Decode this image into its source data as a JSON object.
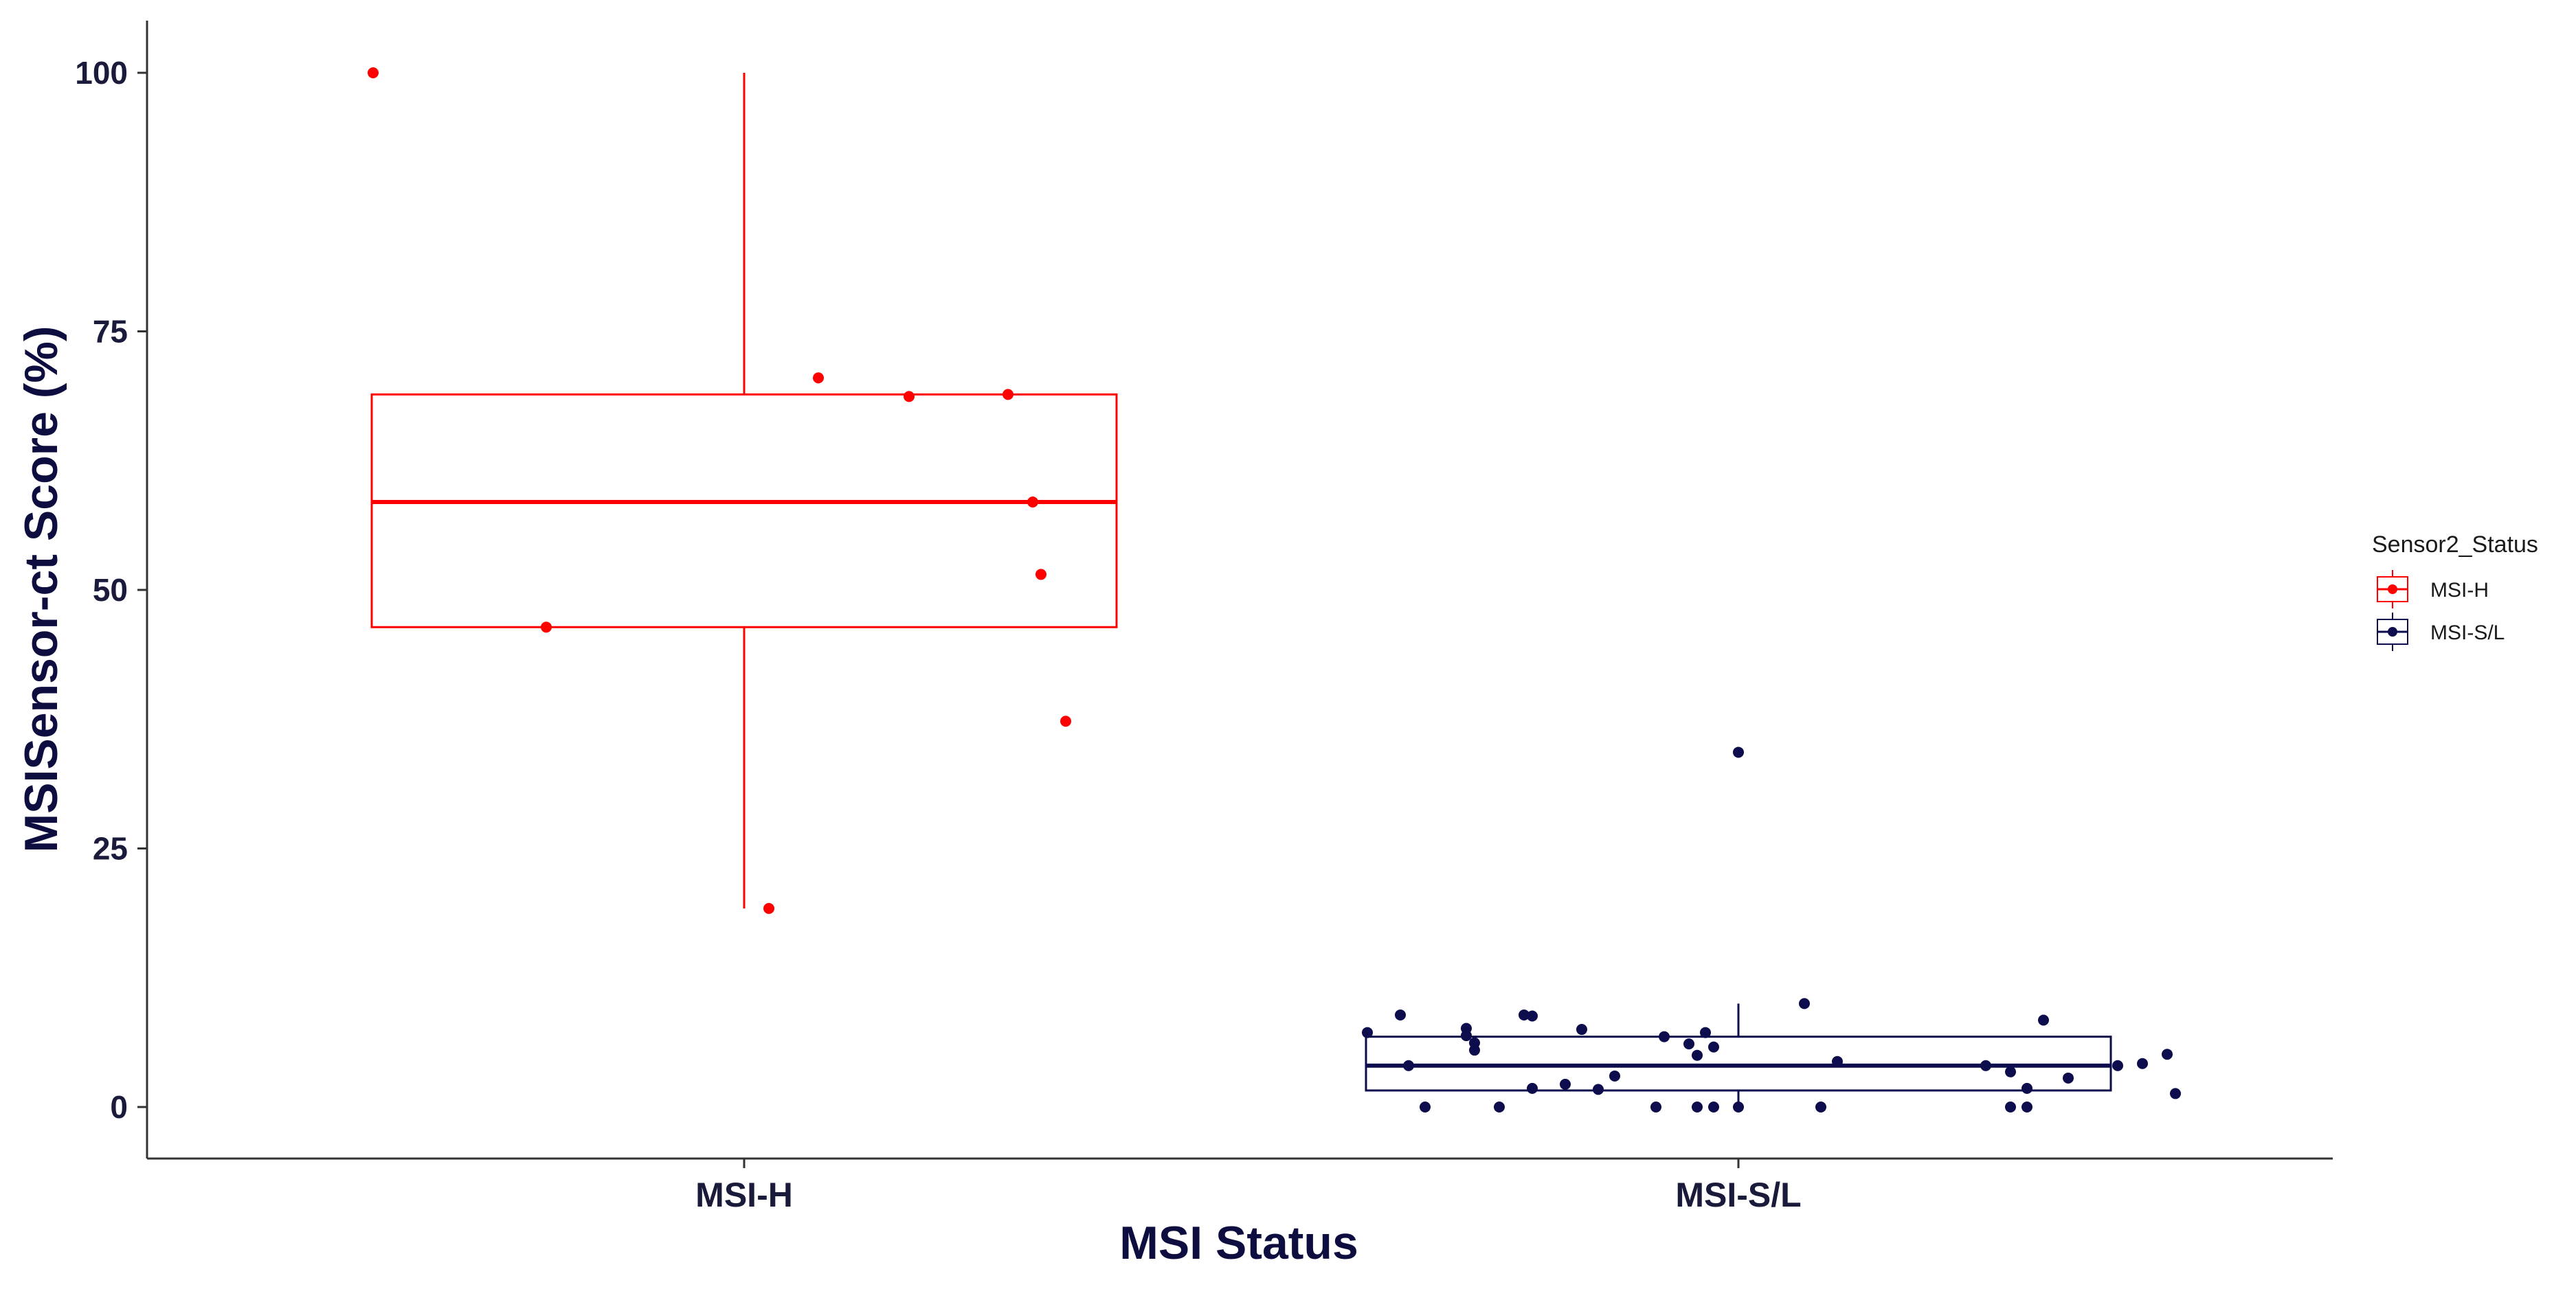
{
  "chart_data": {
    "type": "boxplot",
    "title": "",
    "xlabel": "MSI Status",
    "ylabel": "MSISensor-ct Score (%)",
    "ylim": [
      -5,
      105
    ],
    "yticks": [
      0,
      25,
      50,
      75,
      100
    ],
    "categories": [
      "MSI-H",
      "MSI-S/L"
    ],
    "grid": false,
    "legend": {
      "title": "Sensor2_Status",
      "placement": "right",
      "entries": [
        "MSI-H",
        "MSI-S/L"
      ]
    },
    "series": [
      {
        "name": "MSI-H",
        "category": "MSI-H",
        "color": "#ff0000",
        "box": {
          "whisker_low": 19.2,
          "q1": 46.4,
          "median": 58.5,
          "q3": 68.9,
          "whisker_high": 100
        },
        "points": [
          {
            "jitter": -0.45,
            "y": 100
          },
          {
            "jitter": -0.24,
            "y": 46.4
          },
          {
            "jitter": 0.03,
            "y": 19.2
          },
          {
            "jitter": 0.09,
            "y": 70.5
          },
          {
            "jitter": 0.2,
            "y": 68.7
          },
          {
            "jitter": 0.32,
            "y": 68.9
          },
          {
            "jitter": 0.35,
            "y": 58.5
          },
          {
            "jitter": 0.36,
            "y": 51.5
          },
          {
            "jitter": 0.39,
            "y": 37.3
          }
        ]
      },
      {
        "name": "MSI-S/L",
        "category": "MSI-S/L",
        "color": "#0d0d4d",
        "box": {
          "whisker_low": 0,
          "q1": 1.6,
          "median": 4.0,
          "q3": 6.8,
          "whisker_high": 10.0
        },
        "points": [
          {
            "jitter": -0.45,
            "y": 7.2
          },
          {
            "jitter": -0.41,
            "y": 8.9
          },
          {
            "jitter": -0.4,
            "y": 4.0
          },
          {
            "jitter": -0.38,
            "y": 0.0
          },
          {
            "jitter": -0.33,
            "y": 7.6
          },
          {
            "jitter": -0.33,
            "y": 6.9
          },
          {
            "jitter": -0.32,
            "y": 5.5
          },
          {
            "jitter": -0.32,
            "y": 6.2
          },
          {
            "jitter": -0.29,
            "y": 0.0
          },
          {
            "jitter": -0.26,
            "y": 8.9
          },
          {
            "jitter": -0.25,
            "y": 1.8
          },
          {
            "jitter": -0.25,
            "y": 8.8
          },
          {
            "jitter": -0.21,
            "y": 2.2
          },
          {
            "jitter": -0.19,
            "y": 7.5
          },
          {
            "jitter": -0.17,
            "y": 1.7
          },
          {
            "jitter": -0.15,
            "y": 3.0
          },
          {
            "jitter": -0.1,
            "y": 0.0
          },
          {
            "jitter": -0.09,
            "y": 6.8
          },
          {
            "jitter": -0.06,
            "y": 6.1
          },
          {
            "jitter": -0.05,
            "y": 0.0
          },
          {
            "jitter": -0.05,
            "y": 5.0
          },
          {
            "jitter": -0.04,
            "y": 7.2
          },
          {
            "jitter": -0.03,
            "y": 0.0
          },
          {
            "jitter": -0.03,
            "y": 5.8
          },
          {
            "jitter": 0.0,
            "y": 34.3
          },
          {
            "jitter": 0.0,
            "y": 0.0
          },
          {
            "jitter": 0.08,
            "y": 10.0
          },
          {
            "jitter": 0.1,
            "y": 0.0
          },
          {
            "jitter": 0.12,
            "y": 4.4
          },
          {
            "jitter": 0.3,
            "y": 4.0
          },
          {
            "jitter": 0.33,
            "y": 3.4
          },
          {
            "jitter": 0.33,
            "y": 0.0
          },
          {
            "jitter": 0.35,
            "y": 0.0
          },
          {
            "jitter": 0.35,
            "y": 1.8
          },
          {
            "jitter": 0.37,
            "y": 8.4
          },
          {
            "jitter": 0.4,
            "y": 2.8
          },
          {
            "jitter": 0.46,
            "y": 4.0
          },
          {
            "jitter": 0.49,
            "y": 4.2
          },
          {
            "jitter": 0.52,
            "y": 5.1
          },
          {
            "jitter": 0.53,
            "y": 1.3
          }
        ]
      }
    ]
  }
}
